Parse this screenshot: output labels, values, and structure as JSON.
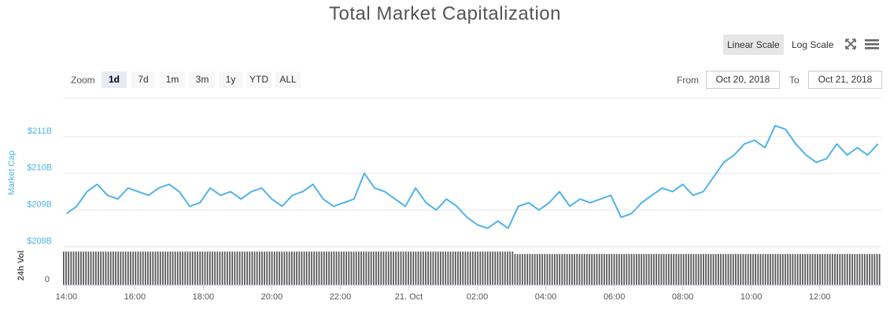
{
  "chart_data": {
    "type": "line",
    "title": "Total Market Capitalization",
    "ylabel": "Market Cap",
    "volume_label": "24h Vol",
    "ylim": [
      208,
      211
    ],
    "y_ticks": [
      "$208B",
      "$209B",
      "$210B",
      "$211B"
    ],
    "volume_ticks": [
      "0"
    ],
    "x_ticks": [
      "14:00",
      "16:00",
      "18:00",
      "20:00",
      "22:00",
      "21. Oct",
      "02:00",
      "04:00",
      "06:00",
      "08:00",
      "10:00",
      "12:00"
    ],
    "xlim_hours": [
      -0.1,
      23.8
    ],
    "grid": true,
    "series": [
      {
        "color": "#4fb4e6",
        "x_hours": [
          0.0,
          0.3,
          0.6,
          0.9,
          1.2,
          1.5,
          1.8,
          2.1,
          2.4,
          2.7,
          3.0,
          3.3,
          3.6,
          3.9,
          4.2,
          4.5,
          4.8,
          5.1,
          5.4,
          5.7,
          6.0,
          6.3,
          6.6,
          6.9,
          7.2,
          7.5,
          7.8,
          8.1,
          8.4,
          8.7,
          9.0,
          9.3,
          9.6,
          9.9,
          10.2,
          10.5,
          10.8,
          11.1,
          11.4,
          11.7,
          12.0,
          12.3,
          12.6,
          12.9,
          13.2,
          13.5,
          13.8,
          14.1,
          14.4,
          14.7,
          15.0,
          15.3,
          15.6,
          15.9,
          16.2,
          16.5,
          16.8,
          17.1,
          17.4,
          17.7,
          18.0,
          18.3,
          18.6,
          18.9,
          19.2,
          19.5,
          19.8,
          20.1,
          20.4,
          20.7,
          21.0,
          21.3,
          21.6,
          21.9,
          22.2,
          22.5,
          22.8,
          23.1,
          23.4,
          23.7
        ],
        "y": [
          208.9,
          209.1,
          209.5,
          209.7,
          209.4,
          209.3,
          209.6,
          209.5,
          209.4,
          209.6,
          209.7,
          209.5,
          209.1,
          209.2,
          209.6,
          209.4,
          209.5,
          209.3,
          209.5,
          209.6,
          209.3,
          209.1,
          209.4,
          209.5,
          209.7,
          209.3,
          209.1,
          209.2,
          209.3,
          210.0,
          209.6,
          209.5,
          209.3,
          209.1,
          209.6,
          209.2,
          209.0,
          209.3,
          209.1,
          208.8,
          208.6,
          208.5,
          208.7,
          208.5,
          209.1,
          209.2,
          209.0,
          209.2,
          209.5,
          209.1,
          209.3,
          209.2,
          209.3,
          209.4,
          208.8,
          208.9,
          209.2,
          209.4,
          209.6,
          209.5,
          209.7,
          209.4,
          209.5,
          209.9,
          210.3,
          210.5,
          210.8,
          210.9,
          210.7,
          211.3,
          211.2,
          210.8,
          210.5,
          210.3,
          210.4,
          210.8,
          210.5,
          210.7,
          210.5,
          210.8
        ]
      }
    ],
    "volume": {
      "color": "#555555",
      "x_hours_range": [
        -0.1,
        23.8
      ],
      "bar_count": 330,
      "level": 0.93
    }
  },
  "toolbar": {
    "scale_buttons": [
      "Linear Scale",
      "Log Scale"
    ],
    "active_scale": "Linear Scale",
    "fullscreen_icon": "fullscreen-icon",
    "menu_icon": "hamburger-menu-icon"
  },
  "zoom": {
    "label": "Zoom",
    "buttons": [
      "1d",
      "7d",
      "1m",
      "3m",
      "1y",
      "YTD",
      "ALL"
    ],
    "active": "1d"
  },
  "range": {
    "from_label": "From",
    "from_value": "Oct 20, 2018",
    "to_label": "To",
    "to_value": "Oct 21, 2018"
  }
}
